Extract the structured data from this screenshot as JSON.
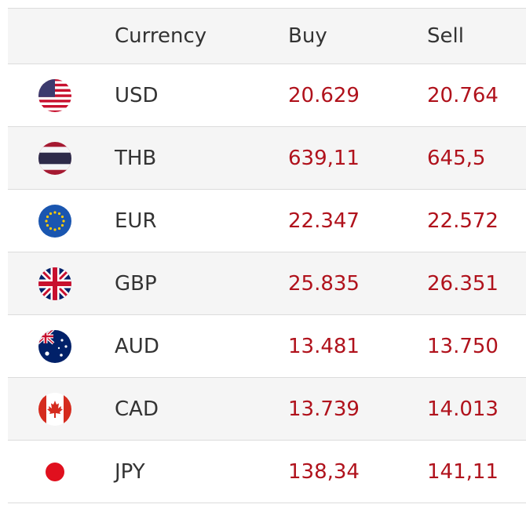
{
  "header": {
    "flag": "",
    "currency": "Currency",
    "buy": "Buy",
    "sell": "Sell"
  },
  "rows": [
    {
      "flag_icon": "us-flag-icon",
      "currency": "USD",
      "buy": "20.629",
      "sell": "20.764"
    },
    {
      "flag_icon": "thailand-flag-icon",
      "currency": "THB",
      "buy": "639,11",
      "sell": "645,5"
    },
    {
      "flag_icon": "eu-flag-icon",
      "currency": "EUR",
      "buy": "22.347",
      "sell": "22.572"
    },
    {
      "flag_icon": "uk-flag-icon",
      "currency": "GBP",
      "buy": "25.835",
      "sell": "26.351"
    },
    {
      "flag_icon": "australia-flag-icon",
      "currency": "AUD",
      "buy": "13.481",
      "sell": "13.750"
    },
    {
      "flag_icon": "canada-flag-icon",
      "currency": "CAD",
      "buy": "13.739",
      "sell": "14.013"
    },
    {
      "flag_icon": "japan-flag-icon",
      "currency": "JPY",
      "buy": "138,34",
      "sell": "141,11"
    }
  ],
  "colors": {
    "value": "#b0121c",
    "text": "#333333",
    "stripe": "#f5f5f5",
    "border": "#dcdcdc"
  }
}
